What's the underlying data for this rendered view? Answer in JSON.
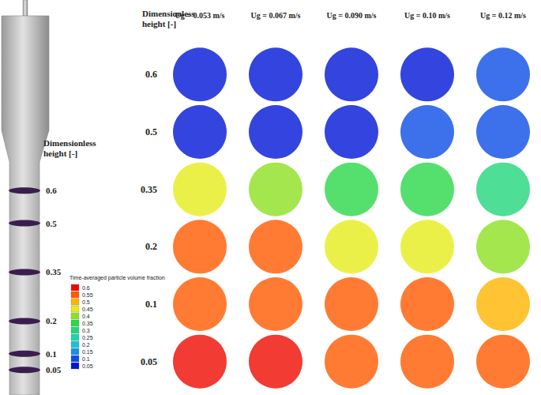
{
  "chart_data": {
    "type": "heatmap",
    "row_axis_title": "Dimensionless height [-]",
    "columns": [
      "Ug = 0.053 m/s",
      "Ug = 0.067 m/s",
      "Ug = 0.090 m/s",
      "Ug = 0.10 m/s",
      "Ug = 0.12 m/s"
    ],
    "heights": [
      0.6,
      0.5,
      0.35,
      0.2,
      0.1,
      0.05
    ],
    "cells": [
      [
        0.05,
        0.05,
        0.05,
        0.06,
        0.1
      ],
      [
        0.05,
        0.05,
        0.05,
        0.08,
        0.1
      ],
      [
        0.45,
        0.42,
        0.37,
        0.36,
        0.32
      ],
      [
        0.55,
        0.55,
        0.46,
        0.46,
        0.42
      ],
      [
        0.55,
        0.55,
        0.55,
        0.55,
        0.51
      ],
      [
        0.6,
        0.6,
        0.56,
        0.56,
        0.55
      ]
    ],
    "colorbar": {
      "title": "Time-averaged particle volume fraction",
      "range": [
        0.05,
        0.6
      ],
      "ticks": [
        0.05,
        0.1,
        0.15,
        0.2,
        0.25,
        0.3,
        0.35,
        0.4,
        0.45,
        0.5,
        0.55,
        0.6
      ],
      "colors": [
        "#0016d6",
        "#0b4ee6",
        "#1a8fe8",
        "#19c3d9",
        "#1bd6b0",
        "#22d67c",
        "#2ad84a",
        "#8ce022",
        "#e6ec1c",
        "#ffb400",
        "#ff5a00",
        "#ee0a00"
      ]
    }
  }
}
